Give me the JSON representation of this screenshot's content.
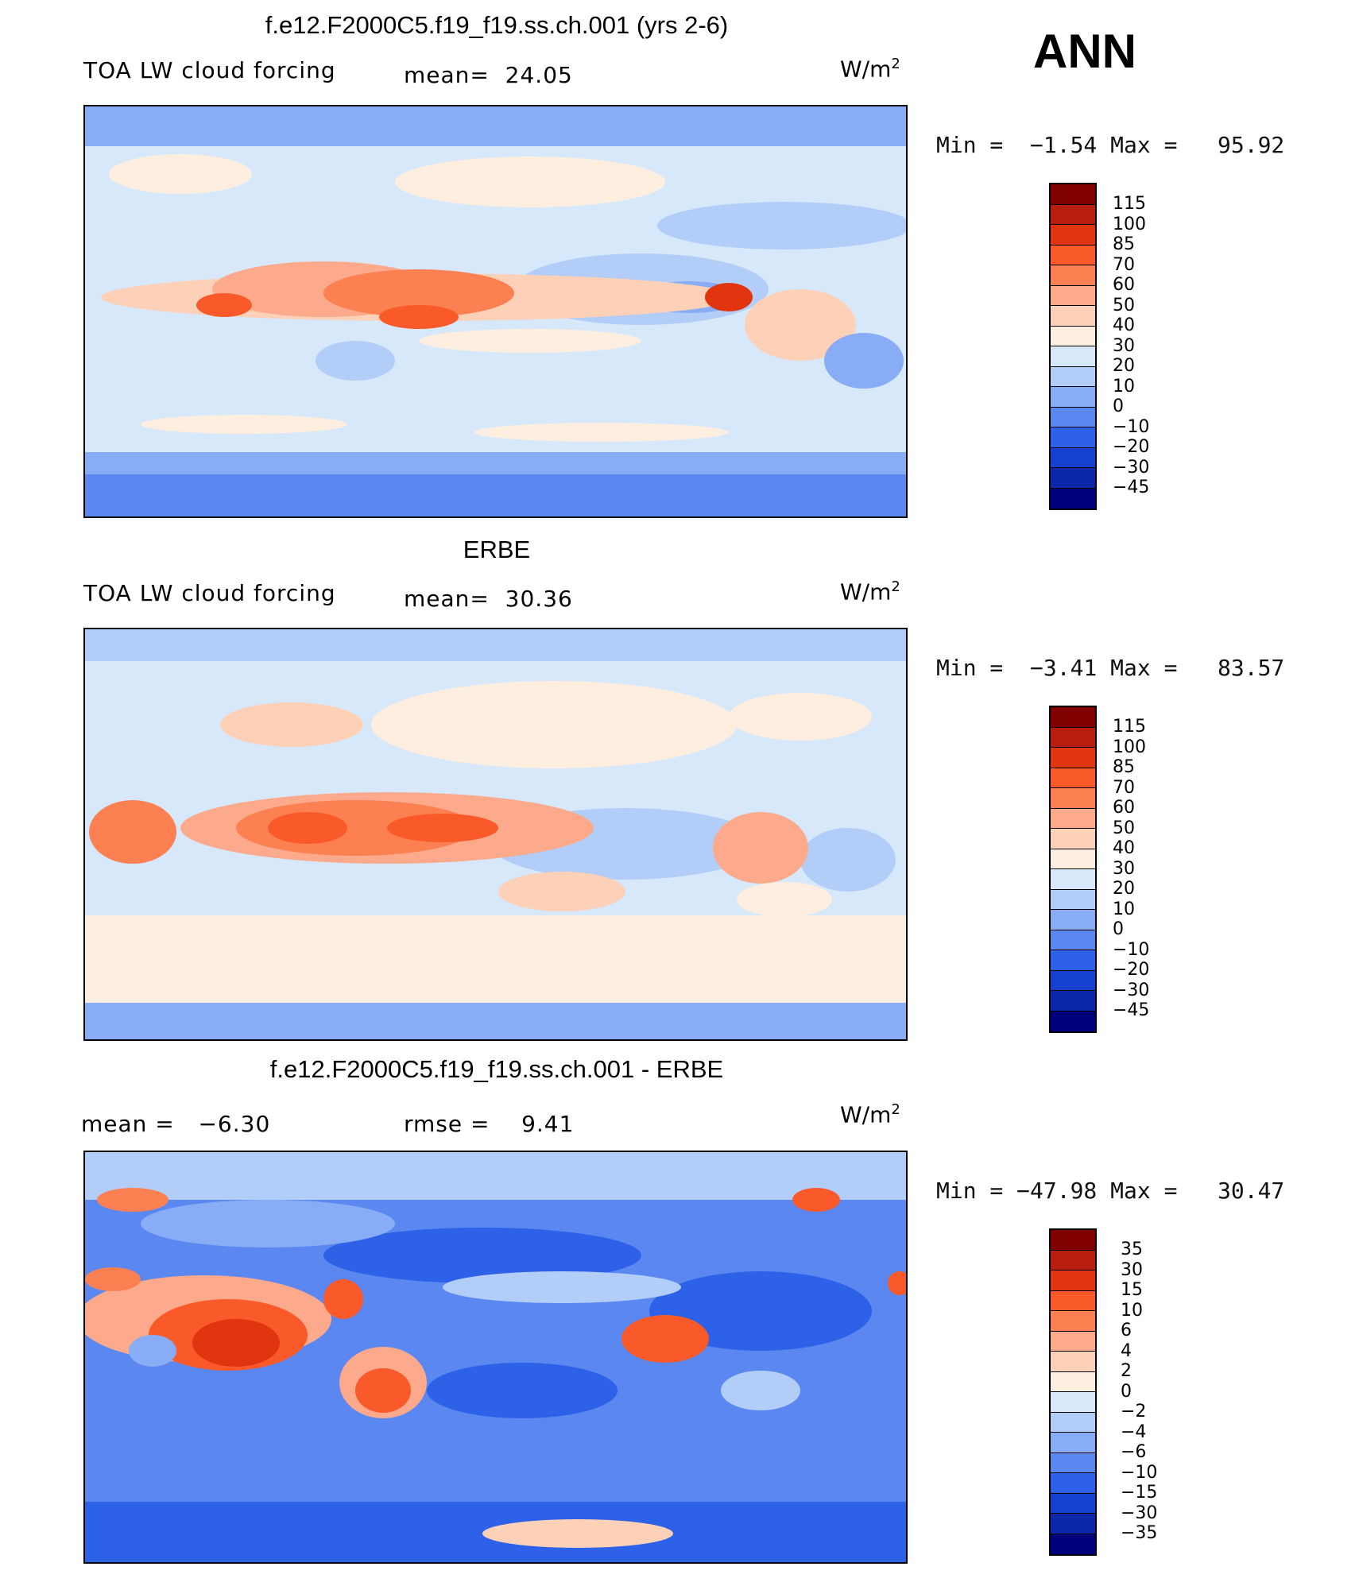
{
  "season": "ANN",
  "units_base": "W/m",
  "units_sup": "2",
  "panels": [
    {
      "title": "f.e12.F2000C5.f19_f19.ss.ch.001 (yrs 2-6)",
      "left_label": "TOA LW cloud forcing",
      "mid_label": "mean=  24.05",
      "minmax": "Min =  −1.54 Max =   95.92",
      "colorbar": {
        "labels": [
          "115",
          "100",
          "85",
          "70",
          "60",
          "50",
          "40",
          "30",
          "20",
          "10",
          "0",
          "−10",
          "−20",
          "−30",
          "−45"
        ],
        "colors": [
          "#800000",
          "#b81e0d",
          "#e0350f",
          "#fa5a2a",
          "#fc8052",
          "#fda98c",
          "#fdd0b8",
          "#fdeee0",
          "#d6e8fa",
          "#b3cdf9",
          "#88acf5",
          "#5b88f0",
          "#2d61e8",
          "#1640cf",
          "#0c27a8",
          "#00007f"
        ]
      }
    },
    {
      "title": "ERBE",
      "left_label": "TOA LW cloud forcing",
      "mid_label": "mean=  30.36",
      "minmax": "Min =  −3.41 Max =   83.57",
      "colorbar": {
        "labels": [
          "115",
          "100",
          "85",
          "70",
          "60",
          "50",
          "40",
          "30",
          "20",
          "10",
          "0",
          "−10",
          "−20",
          "−30",
          "−45"
        ],
        "colors": [
          "#800000",
          "#b81e0d",
          "#e0350f",
          "#fa5a2a",
          "#fc8052",
          "#fda98c",
          "#fdd0b8",
          "#fdeee0",
          "#d6e8fa",
          "#b3cdf9",
          "#88acf5",
          "#5b88f0",
          "#2d61e8",
          "#1640cf",
          "#0c27a8",
          "#00007f"
        ]
      }
    },
    {
      "title": "f.e12.F2000C5.f19_f19.ss.ch.001 - ERBE",
      "left_label": "mean =   −6.30",
      "mid_label": "rmse =    9.41",
      "minmax": "Min = −47.98 Max =   30.47",
      "colorbar": {
        "labels": [
          "35",
          "30",
          "15",
          "10",
          "6",
          "4",
          "2",
          "0",
          "−2",
          "−4",
          "−6",
          "−10",
          "−15",
          "−30",
          "−35"
        ],
        "colors": [
          "#800000",
          "#b81e0d",
          "#e0350f",
          "#fa5a2a",
          "#fc8052",
          "#fda98c",
          "#fdd0b8",
          "#fdeee0",
          "#d6e8fa",
          "#b3cdf9",
          "#88acf5",
          "#5b88f0",
          "#2d61e8",
          "#1640cf",
          "#0c27a8",
          "#00007f"
        ]
      }
    }
  ]
}
